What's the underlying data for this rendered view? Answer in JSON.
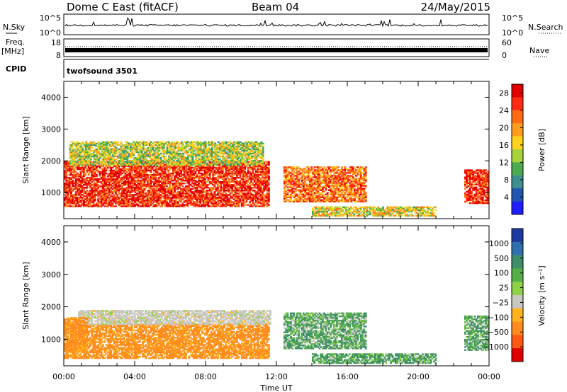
{
  "header": {
    "radar": "Dome C East (fitACF)",
    "beam": "Beam 04",
    "date": "24/May/2015"
  },
  "params": {
    "nsky_label": "N.Sky",
    "nsky_ticks": [
      "10^5",
      "10^0"
    ],
    "nsearch_label": "N.Search",
    "nsearch_ticks": [
      "10^5",
      "10^0"
    ],
    "freq_label": "Freq.",
    "freq_unit": "[MHz]",
    "freq_ticks": [
      "18",
      "8"
    ],
    "nave_label": "Nave",
    "nave_ticks": [
      "60",
      "0"
    ],
    "cpid_label": "CPID",
    "cpid_value": "twofsound 3501"
  },
  "x_axis": {
    "label": "Time UT",
    "ticks": [
      "00:00",
      "04:00",
      "08:00",
      "12:00",
      "16:00",
      "20:00",
      "00:00"
    ]
  },
  "colors": {
    "power": [
      "#1e1eff",
      "#2255b0",
      "#3f8f8f",
      "#4caa50",
      "#a9d23c",
      "#ffd21e",
      "#ff9d1e",
      "#ff6a14",
      "#ff2a14",
      "#e00000"
    ],
    "velocity": [
      "#1e3a9e",
      "#2f6fb0",
      "#3f8f6a",
      "#55b04a",
      "#8fd24a",
      "#c8c8c0",
      "#ffb21e",
      "#ff8c1e",
      "#ff5a14",
      "#e00000"
    ]
  },
  "chart_data": [
    {
      "type": "heatmap",
      "panel": "power",
      "ylabel": "Slant Range [km]",
      "ylim": [
        180,
        4500
      ],
      "yticks": [
        "1000",
        "2000",
        "3000",
        "4000"
      ],
      "xlim_hours": [
        0,
        24
      ],
      "colorbar": {
        "label": "Power [dB]",
        "ticks": [
          "4",
          "8",
          "12",
          "16",
          "20",
          "24",
          "28"
        ],
        "range": [
          0,
          30
        ]
      },
      "regions": [
        {
          "t": [
            0.0,
            11.6
          ],
          "r": [
            550,
            1950
          ],
          "value": 26
        },
        {
          "t": [
            0.3,
            11.2
          ],
          "r": [
            1850,
            2600
          ],
          "value": 14
        },
        {
          "t": [
            12.4,
            17.0
          ],
          "r": [
            700,
            1800
          ],
          "value": 22
        },
        {
          "t": [
            14.0,
            21.0
          ],
          "r": [
            250,
            550
          ],
          "value": 16
        },
        {
          "t": [
            22.6,
            24.0
          ],
          "r": [
            650,
            1700
          ],
          "value": 26
        }
      ]
    },
    {
      "type": "heatmap",
      "panel": "velocity",
      "ylabel": "Slant Range [km]",
      "ylim": [
        180,
        4500
      ],
      "yticks": [
        "1000",
        "2000",
        "3000",
        "4000"
      ],
      "xlim_hours": [
        0,
        24
      ],
      "colorbar": {
        "label": "Velocity [m s⁻¹]",
        "ticks": [
          "1000",
          "500",
          "100",
          "25",
          "−25",
          "−100",
          "−500",
          "−1000"
        ]
      },
      "regions": [
        {
          "t": [
            0.0,
            11.6
          ],
          "r": [
            400,
            1450
          ],
          "value": -150
        },
        {
          "t": [
            0.8,
            11.6
          ],
          "r": [
            1450,
            1900
          ],
          "value": 0
        },
        {
          "t": [
            0.0,
            1.3
          ],
          "r": [
            600,
            1650
          ],
          "value": -150
        },
        {
          "t": [
            12.4,
            17.0
          ],
          "r": [
            700,
            1800
          ],
          "value": 80
        },
        {
          "t": [
            14.0,
            21.0
          ],
          "r": [
            250,
            550
          ],
          "value": 100
        },
        {
          "t": [
            22.6,
            24.0
          ],
          "r": [
            650,
            1700
          ],
          "value": 90
        }
      ]
    }
  ]
}
